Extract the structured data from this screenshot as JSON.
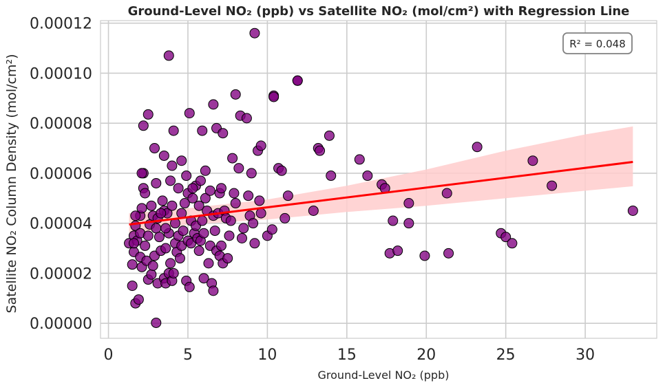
{
  "chart_data": {
    "type": "scatter",
    "title": "Ground-Level NO₂ (ppb) vs Satellite NO₂ (mol/cm²) with Regression Line",
    "xlabel": "Ground-Level NO₂ (ppb)",
    "ylabel": "Satellite NO₂ Column Density (mol/cm²)",
    "xlim": [
      -0.5,
      34.5
    ],
    "ylim": [
      -6e-06,
      0.000121
    ],
    "xticks": [
      0,
      5,
      10,
      15,
      20,
      25,
      30
    ],
    "xtick_labels": [
      "0",
      "5",
      "10",
      "15",
      "20",
      "25",
      "30"
    ],
    "yticks": [
      0,
      2e-05,
      4e-05,
      6e-05,
      8e-05,
      0.0001,
      0.00012
    ],
    "ytick_labels": [
      "0.00000",
      "0.00002",
      "0.00004",
      "0.00006",
      "0.00008",
      "0.00010",
      "0.00012"
    ],
    "grid": true,
    "annotation": "R² = 0.048",
    "colors": {
      "points": "#800080",
      "point_edge": "#000000",
      "regression": "#ff0000",
      "ci_band": "#ffcccc",
      "grid": "#cccccc"
    },
    "regression_line": {
      "x": [
        1.3,
        33.0
      ],
      "y": [
        3.95e-05,
        6.45e-05
      ]
    },
    "confidence_band": {
      "x": [
        1.3,
        5,
        10,
        15,
        20,
        25,
        30,
        33
      ],
      "lower": [
        3.55e-05,
        3.95e-05,
        4.15e-05,
        4.45e-05,
        4.7e-05,
        5e-05,
        5.3e-05,
        5.48e-05
      ],
      "upper": [
        4.4e-05,
        4.6e-05,
        4.95e-05,
        5.5e-05,
        6.15e-05,
        6.9e-05,
        7.55e-05,
        7.87e-05
      ]
    },
    "series": [
      {
        "x": [
          1.3,
          1.5,
          1.5,
          1.6,
          1.6,
          1.7,
          1.7,
          1.8,
          1.9,
          2.0,
          2.0,
          2.0,
          2.1,
          2.1,
          2.2,
          2.2,
          2.3,
          2.3,
          2.4,
          2.5,
          2.5,
          2.6,
          2.7,
          2.8,
          2.8,
          2.9,
          3.0,
          3.0,
          3.1,
          3.1,
          3.2,
          3.3,
          3.4,
          3.5,
          3.5,
          3.6,
          3.6,
          3.7,
          3.8,
          3.8,
          3.9,
          4.0,
          4.0,
          4.1,
          4.2,
          4.2,
          4.3,
          4.4,
          4.5,
          4.6,
          4.6,
          4.7,
          4.8,
          4.9,
          5.0,
          5.0,
          5.1,
          5.2,
          5.2,
          5.3,
          5.4,
          5.5,
          5.6,
          5.7,
          5.8,
          5.9,
          6.0,
          6.0,
          6.1,
          6.2,
          6.3,
          6.4,
          6.5,
          6.6,
          6.6,
          6.7,
          6.8,
          6.9,
          7.0,
          7.0,
          7.1,
          7.2,
          7.3,
          7.4,
          7.5,
          7.6,
          7.7,
          7.9,
          8.0,
          8.2,
          8.4,
          8.5,
          8.8,
          8.9,
          9.0,
          9.1,
          9.2,
          9.4,
          9.5,
          9.6,
          10.0,
          10.3,
          10.4,
          10.7,
          10.9,
          11.1,
          11.3,
          11.9,
          12.9,
          13.2,
          13.3,
          13.9,
          14.0,
          15.8,
          16.3,
          17.2,
          17.4,
          17.7,
          17.9,
          18.2,
          18.9,
          18.9,
          19.9,
          21.3,
          21.4,
          23.2,
          24.7,
          25.0,
          25.4,
          26.7,
          27.9,
          33.0,
          3.8,
          9.2,
          11.9,
          8.0,
          10.4,
          6.6,
          8.3,
          5.1,
          2.5,
          2.2,
          4.1,
          3.5,
          2.9,
          6.8,
          7.2,
          5.9,
          3.0,
          1.7,
          1.6,
          2.1,
          4.0,
          5.5,
          6.1,
          7.8,
          8.7,
          9.6,
          3.9,
          4.6,
          5.3,
          2.7,
          3.3,
          4.4,
          5.7,
          6.4,
          7.1,
          4.9,
          5.8,
          3.6
        ],
        "y": [
          3.2e-05,
          2.35e-05,
          1.5e-05,
          2.85e-05,
          3.5e-05,
          8e-06,
          3.9e-05,
          3.3e-05,
          9.5e-06,
          2.65e-05,
          3.6e-05,
          4.3e-05,
          2.25e-05,
          4.6e-05,
          5.4e-05,
          6e-05,
          3.1e-05,
          5.2e-05,
          2.5e-05,
          1.75e-05,
          3.5e-05,
          3.95e-05,
          1.95e-05,
          2.3e-05,
          4.3e-05,
          2.7e-05,
          2e-07,
          3.8e-05,
          1.6e-05,
          4.2e-05,
          3.45e-05,
          2.9e-05,
          4.9e-05,
          1.8e-05,
          4.5e-05,
          1.6e-05,
          3e-05,
          4.4e-05,
          2e-05,
          3.6e-05,
          2.4e-05,
          1.7e-05,
          4.7e-05,
          2e-05,
          3.2e-05,
          4e-05,
          2.85e-05,
          3.5e-05,
          2.6e-05,
          3.1e-05,
          4.4e-05,
          3.7e-05,
          4.8e-05,
          1.7e-05,
          3.3e-05,
          5.2e-05,
          1.45e-05,
          3.2e-05,
          4.1e-05,
          5e-05,
          3.6e-05,
          3.9e-05,
          3.4e-05,
          2.9e-05,
          3.3e-05,
          4.1e-05,
          1.8e-05,
          3.6e-05,
          5e-05,
          4.5e-05,
          2.4e-05,
          3.1e-05,
          1.6e-05,
          1.3e-05,
          4.3e-05,
          3.7e-05,
          2.9e-05,
          4.4e-05,
          2.7e-05,
          5.2e-05,
          3.1e-05,
          2.4e-05,
          4.5e-05,
          4.2e-05,
          2.6e-05,
          3.5e-05,
          4.1e-05,
          5.2e-05,
          4.8e-05,
          6.2e-05,
          3.4e-05,
          3.8e-05,
          5.1e-05,
          4.3e-05,
          6e-05,
          4e-05,
          3.2e-05,
          6.9e-05,
          4.9e-05,
          4.4e-05,
          3.5e-05,
          3.75e-05,
          9.1e-05,
          6.2e-05,
          6.1e-05,
          4.2e-05,
          5.1e-05,
          9.7e-05,
          4.5e-05,
          7e-05,
          6.9e-05,
          7.5e-05,
          5.9e-05,
          6.55e-05,
          5.9e-05,
          5.55e-05,
          5.4e-05,
          2.8e-05,
          4.1e-05,
          2.9e-05,
          4e-05,
          4.8e-05,
          2.7e-05,
          5.2e-05,
          2.8e-05,
          7.05e-05,
          3.6e-05,
          3.45e-05,
          3.2e-05,
          6.5e-05,
          5.5e-05,
          4.5e-05,
          0.000107,
          0.000116,
          9.7e-05,
          9.15e-05,
          9.05e-05,
          8.75e-05,
          8.3e-05,
          8.4e-05,
          8.35e-05,
          7.9e-05,
          7.7e-05,
          6.7e-05,
          7e-05,
          7.8e-05,
          7.6e-05,
          7.7e-05,
          5.6e-05,
          4.3e-05,
          3.2e-05,
          6e-05,
          6.3e-05,
          5.5e-05,
          6.1e-05,
          6.6e-05,
          8.2e-05,
          7.1e-05,
          5.7e-05,
          6.5e-05,
          5.4e-05,
          4.7e-05,
          4.4e-05,
          5.4e-05,
          4.7e-05,
          5.3e-05,
          5.4e-05,
          5.9e-05,
          5.7e-05,
          3.8e-05
        ]
      }
    ]
  }
}
